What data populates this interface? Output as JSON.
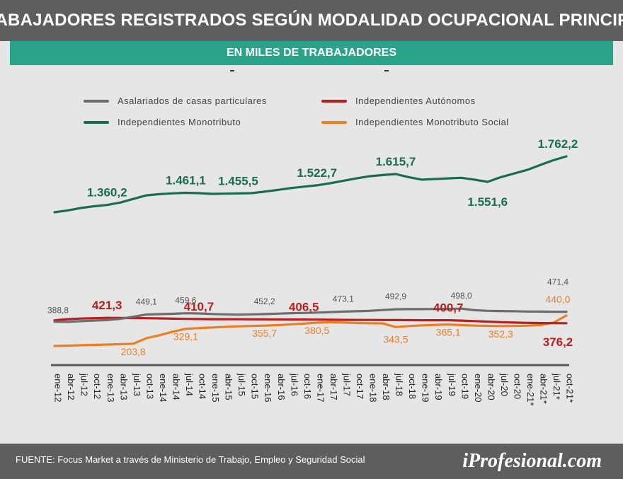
{
  "header": {
    "title": "TRABAJADORES REGISTRADOS SEGÚN MODALIDAD OCUPACIONAL PRINCIPAL",
    "subtitle": "EN MILES DE TRABAJADORES"
  },
  "footer": {
    "source": "FUENTE: Focus Market a través de Ministerio de Trabajo, Empleo y Seguridad Social",
    "logo": "iProfesional.com"
  },
  "colors": {
    "asalariados": "#6d6d6d",
    "autonomos": "#b52020",
    "monotributo": "#1a6b55",
    "social": "#ee7d22"
  },
  "chart_data": {
    "type": "line",
    "title": "TRABAJADORES REGISTRADOS SEGÚN MODALIDAD OCUPACIONAL PRINCIPAL",
    "subtitle": "EN MILES DE TRABAJADORES",
    "x_tick_labels": [
      "ene-12",
      "abr-12",
      "jul-12",
      "oct-12",
      "ene-13",
      "abr-13",
      "jul-13",
      "oct-13",
      "ene-14",
      "abr-14",
      "jul-14",
      "oct-14",
      "ene-15",
      "abr-15",
      "jul-15",
      "oct-15",
      "ene-16",
      "abr-16",
      "jul-16",
      "oct-16",
      "ene-17",
      "abr-17",
      "jul-17",
      "oct-17",
      "ene-18",
      "abr-18",
      "jul-18",
      "oct-18",
      "ene-19",
      "abr-19",
      "jul-19",
      "oct-19",
      "ene-20",
      "abr-20",
      "jul-20",
      "oct-20",
      "ene-21*",
      "abr-21*",
      "jul-21*",
      "oct-21*"
    ],
    "series": [
      {
        "key": "asalariados",
        "name": "Asalariados de casas particulares",
        "values": [
          388.8,
          387.0,
          393.0,
          398.0,
          402.0,
          412.0,
          430.0,
          449.1,
          452.0,
          455.0,
          459.6,
          458.0,
          453.0,
          450.0,
          448.0,
          450.0,
          452.2,
          456.0,
          460.0,
          462.0,
          465.0,
          469.0,
          473.1,
          476.0,
          480.0,
          486.0,
          492.9,
          494.0,
          494.0,
          495.0,
          496.0,
          498.0,
          485.0,
          480.0,
          478.0,
          476.0,
          474.0,
          473.0,
          472.0,
          471.4
        ],
        "labels": [
          {
            "i": 0,
            "text": "388,8"
          },
          {
            "i": 7,
            "text": "449,1"
          },
          {
            "i": 10,
            "text": "459,6"
          },
          {
            "i": 16,
            "text": "452,2"
          },
          {
            "i": 22,
            "text": "473,1"
          },
          {
            "i": 26,
            "text": "492,9"
          },
          {
            "i": 31,
            "text": "498,0"
          },
          {
            "i": 39,
            "text": "471,4"
          }
        ]
      },
      {
        "key": "autonomos",
        "name": "Independientes Autónomos",
        "values": [
          400.0,
          410.0,
          415.0,
          418.0,
          421.3,
          420.0,
          419.0,
          418.0,
          416.0,
          414.0,
          412.0,
          410.7,
          410.0,
          409.5,
          409.0,
          408.5,
          408.0,
          407.5,
          407.0,
          406.5,
          406.0,
          405.0,
          404.0,
          403.5,
          403.0,
          402.5,
          402.0,
          401.5,
          401.0,
          400.9,
          400.7,
          398.0,
          394.0,
          389.0,
          385.0,
          381.0,
          379.0,
          377.0,
          376.5,
          376.2
        ],
        "labels": [
          {
            "i": 4,
            "text": "421,3"
          },
          {
            "i": 11,
            "text": "410,7"
          },
          {
            "i": 19,
            "text": "406,5"
          },
          {
            "i": 30,
            "text": "400,7"
          },
          {
            "i": 39,
            "text": "376,2"
          }
        ]
      },
      {
        "key": "monotributo",
        "name": "Independientes Monotributo",
        "values": [
          1300.0,
          1315.0,
          1335.0,
          1350.0,
          1360.2,
          1380.0,
          1410.0,
          1440.0,
          1450.0,
          1456.0,
          1461.1,
          1458.0,
          1452.0,
          1454.0,
          1455.5,
          1458.0,
          1470.0,
          1485.0,
          1500.0,
          1512.0,
          1522.7,
          1540.0,
          1560.0,
          1580.0,
          1598.0,
          1608.0,
          1615.7,
          1590.0,
          1570.0,
          1575.0,
          1580.0,
          1585.0,
          1570.0,
          1551.6,
          1590.0,
          1620.0,
          1650.0,
          1690.0,
          1730.0,
          1762.2
        ],
        "labels": [
          {
            "i": 4,
            "text": "1.360,2"
          },
          {
            "i": 10,
            "text": "1.461,1"
          },
          {
            "i": 14,
            "text": "1.455,5"
          },
          {
            "i": 20,
            "text": "1.522,7"
          },
          {
            "i": 26,
            "text": "1.615,7"
          },
          {
            "i": 33,
            "text": "1.551,6"
          },
          {
            "i": 39,
            "text": "1.762,2"
          }
        ]
      },
      {
        "key": "social",
        "name": "Independientes Monotributo Social",
        "values": [
          185.0,
          188.0,
          191.0,
          194.0,
          197.0,
          200.0,
          203.8,
          250.0,
          275.0,
          305.0,
          329.1,
          335.0,
          340.0,
          345.0,
          350.0,
          353.0,
          355.7,
          360.0,
          366.0,
          373.0,
          380.5,
          385.0,
          382.0,
          378.0,
          376.0,
          374.0,
          343.5,
          352.0,
          358.0,
          362.0,
          365.1,
          360.0,
          356.0,
          354.0,
          352.3,
          353.0,
          355.0,
          360.0,
          380.0,
          440.0
        ],
        "labels": [
          {
            "i": 6,
            "text": "203,8"
          },
          {
            "i": 10,
            "text": "329,1"
          },
          {
            "i": 16,
            "text": "355,7"
          },
          {
            "i": 20,
            "text": "380,5"
          },
          {
            "i": 26,
            "text": "343,5"
          },
          {
            "i": 30,
            "text": "365,1"
          },
          {
            "i": 34,
            "text": "352,3"
          },
          {
            "i": 39,
            "text": "440,0"
          }
        ]
      }
    ],
    "legend": [
      "Asalariados de casas particulares",
      "Independientes Autónomos",
      "Independientes Monotributo",
      "Independientes Monotributo Social"
    ],
    "legend_position": "top",
    "grid": false
  }
}
